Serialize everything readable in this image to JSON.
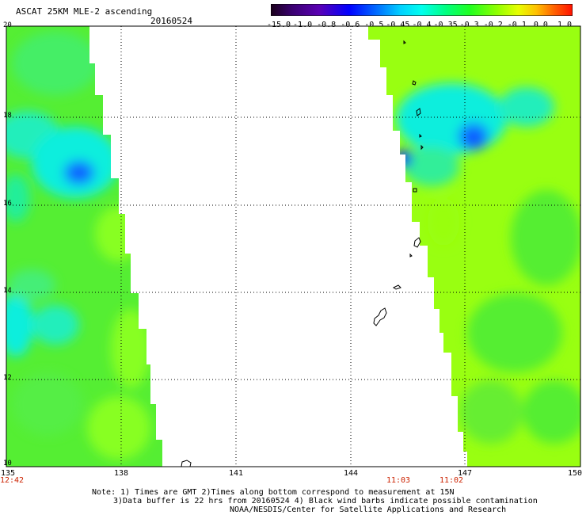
{
  "header": {
    "title": "ASCAT 25KM MLE-2 ascending",
    "date": "20160524"
  },
  "colorbar": {
    "labels": [
      "-15.0",
      "-1.0",
      "-0.8",
      "-0.6",
      "-0.5",
      "-0.45",
      "-0.4",
      "-0.35",
      "-0.3",
      "-0.2",
      "-0.1",
      "0.0",
      "1.0"
    ],
    "colors": [
      "#1a001a",
      "#3a0070",
      "#5a00b4",
      "#0000ff",
      "#0066ff",
      "#00c8ff",
      "#00ffee",
      "#00ff90",
      "#20ff20",
      "#80ff00",
      "#d8ff00",
      "#ffd800",
      "#ff8800",
      "#ff3300",
      "#ff0000"
    ]
  },
  "map": {
    "lon_range": [
      135,
      150
    ],
    "lat_range": [
      10,
      20
    ],
    "x_ticks": [
      "135",
      "138",
      "141",
      "144",
      "147",
      "150"
    ],
    "y_ticks": [
      "20",
      "18",
      "16",
      "14",
      "12",
      "10"
    ]
  },
  "swath_times": [
    {
      "text": "12:42",
      "lon": 135.05
    },
    {
      "text": "11:03",
      "lon": 146.2
    },
    {
      "text": "11:02",
      "lon": 146.7
    }
  ],
  "notes": {
    "line1": "Note: 1) Times are GMT 2)Times along bottom correspond to measurement at 15N",
    "line2": "3)Data buffer is 22 hrs from 20160524 4) Black wind barbs indicate possible contamination",
    "line3": "NOAA/NESDIS/Center for Satellite Applications and Research"
  },
  "colors": {
    "swath_green": "#55ee33",
    "swath_lime": "#99ff11",
    "swath_cyan": "#11eedd",
    "swath_blue": "#1166ff",
    "time_label": "#cc2200"
  }
}
